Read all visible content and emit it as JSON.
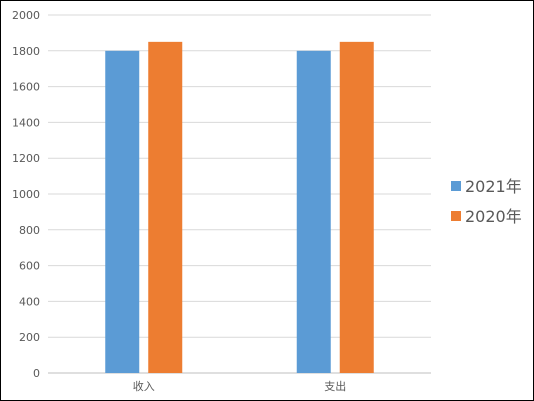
{
  "chart_data": {
    "type": "bar",
    "categories": [
      "收入",
      "支出"
    ],
    "series": [
      {
        "name": "2021年",
        "values": [
          1800,
          1800
        ],
        "color": "#5b9bd5"
      },
      {
        "name": "2020年",
        "values": [
          1850,
          1850
        ],
        "color": "#ed7d31"
      }
    ],
    "title": "",
    "xlabel": "",
    "ylabel": "",
    "ylim": [
      0,
      2000
    ],
    "yticks": [
      0,
      200,
      400,
      600,
      800,
      1000,
      1200,
      1400,
      1600,
      1800,
      2000
    ],
    "grid": true,
    "legend_position": "right"
  }
}
